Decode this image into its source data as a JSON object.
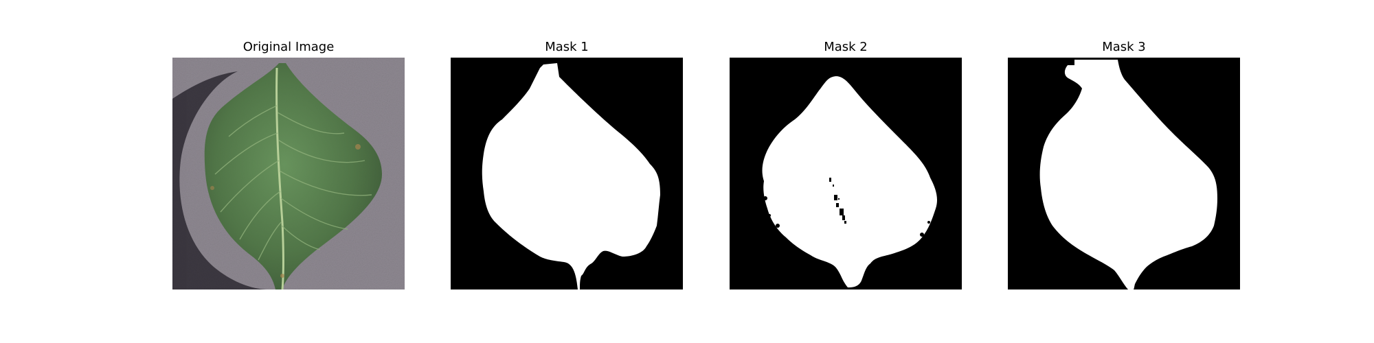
{
  "figure": {
    "panels": [
      {
        "title": "Original Image",
        "kind": "photo",
        "subject": "leaf"
      },
      {
        "title": "Mask 1",
        "kind": "binary-mask"
      },
      {
        "title": "Mask 2",
        "kind": "binary-mask"
      },
      {
        "title": "Mask 3",
        "kind": "binary-mask"
      }
    ],
    "colors": {
      "background_photo": "#8d8790",
      "leaf_dark": "#3a5c32",
      "leaf_mid": "#4f7a44",
      "vein": "#a9c28a",
      "mask_bg": "#000000",
      "mask_fg": "#ffffff"
    }
  }
}
